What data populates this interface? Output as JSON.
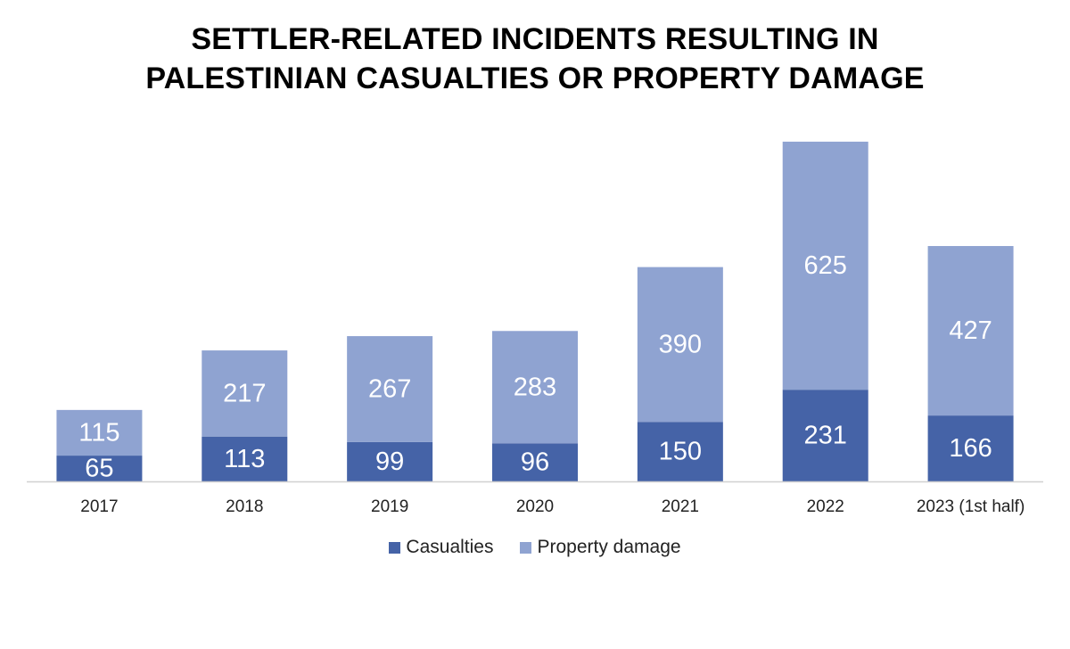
{
  "chart_data": {
    "type": "bar",
    "stacked": true,
    "title_lines": [
      "SETTLER-RELATED INCIDENTS RESULTING IN",
      "PALESTINIAN CASUALTIES OR PROPERTY DAMAGE"
    ],
    "categories": [
      "2017",
      "2018",
      "2019",
      "2020",
      "2021",
      "2022",
      "2023 (1st half)"
    ],
    "series": [
      {
        "name": "Casualties",
        "color": "#4563a7",
        "values": [
          65,
          113,
          99,
          96,
          150,
          231,
          166
        ]
      },
      {
        "name": "Property damage",
        "color": "#8fa3d1",
        "values": [
          115,
          217,
          267,
          283,
          390,
          625,
          427
        ]
      }
    ],
    "xlabel": "",
    "ylabel": "",
    "ylim": [
      0,
      856
    ],
    "grid": false,
    "legend": "bottom-center"
  }
}
